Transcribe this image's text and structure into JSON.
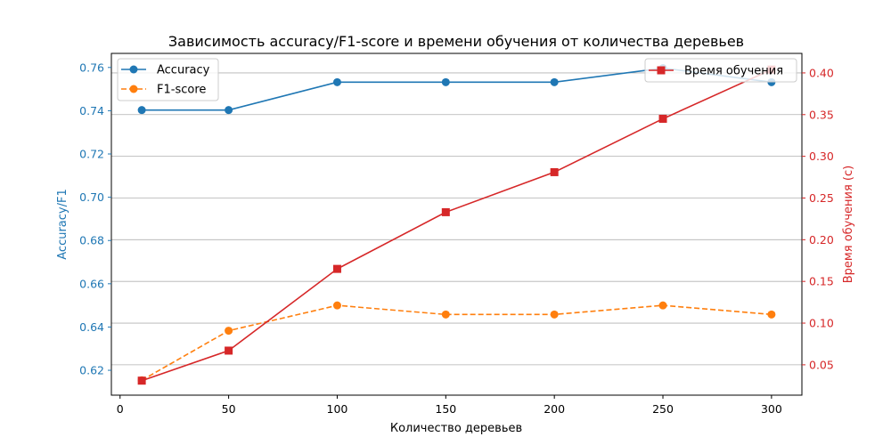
{
  "chart_data": {
    "type": "line",
    "title": "Зависимость accuracy/F1-score и времени обучения от количества деревьев",
    "xlabel": "Количество деревьев",
    "ylabel_left": "Accuracy/F1",
    "ylabel_right": "Время обучения (с)",
    "x": [
      10,
      50,
      100,
      150,
      200,
      250,
      300
    ],
    "xlim": [
      -4,
      314
    ],
    "ylim_left": [
      0.6085,
      0.7665
    ],
    "ylim_right": [
      0.0136,
      0.4234
    ],
    "x_ticks": [
      0,
      50,
      100,
      150,
      200,
      250,
      300
    ],
    "y_ticks_left": [
      0.62,
      0.64,
      0.66,
      0.68,
      0.7,
      0.72,
      0.74,
      0.76
    ],
    "y_tick_labels_left": [
      "0.62",
      "0.64",
      "0.66",
      "0.68",
      "0.70",
      "0.72",
      "0.74",
      "0.76"
    ],
    "y_ticks_right": [
      0.05,
      0.1,
      0.15,
      0.2,
      0.25,
      0.3,
      0.35,
      0.4
    ],
    "y_tick_labels_right": [
      "0.05",
      "0.10",
      "0.15",
      "0.20",
      "0.25",
      "0.30",
      "0.35",
      "0.40"
    ],
    "grid": "horizontal, right axis",
    "series": [
      {
        "name": "Accuracy",
        "axis": "left",
        "color": "#1f77b4",
        "marker": "circle",
        "linestyle": "solid",
        "values": [
          0.7403,
          0.7403,
          0.7532,
          0.7532,
          0.7532,
          0.7597,
          0.7532
        ]
      },
      {
        "name": "F1-score",
        "axis": "left",
        "color": "#ff7f0e",
        "marker": "circle",
        "linestyle": "dashed",
        "values": [
          0.6154,
          0.6383,
          0.65,
          0.6458,
          0.6458,
          0.65,
          0.6458
        ]
      },
      {
        "name": "Время обучения",
        "axis": "right",
        "color": "#d62728",
        "marker": "square",
        "linestyle": "solid",
        "values": [
          0.031,
          0.067,
          0.165,
          0.233,
          0.281,
          0.345,
          0.404
        ]
      }
    ],
    "legend_left": {
      "placement": "top-left",
      "entries": [
        "Accuracy",
        "F1-score"
      ]
    },
    "legend_right": {
      "placement": "top-right",
      "entries": [
        "Время обучения"
      ]
    }
  }
}
